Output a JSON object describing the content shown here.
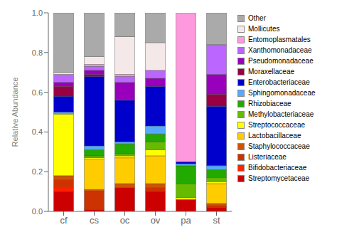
{
  "chart_data": {
    "type": "bar",
    "stacked": true,
    "grid": false,
    "legend": "right",
    "ylabel": "Relative Abundance",
    "categories": [
      "cf",
      "cs",
      "oc",
      "ov",
      "pa",
      "st"
    ],
    "ylim": [
      0.0,
      1.0
    ],
    "yticks": [
      {
        "value": 0.0,
        "label": "0.0"
      },
      0.2,
      0.4,
      0.6,
      0.8,
      {
        "value": 1.0,
        "label": "1.0"
      }
    ],
    "series": [
      {
        "name": "Streptomycetaceae",
        "color": "#cc0000",
        "values": [
          0.1,
          0.01,
          0.12,
          0.1,
          0.06,
          0.02
        ]
      },
      {
        "name": "Bifidobacteriaceae",
        "color": "#ff2200",
        "values": [
          0.02,
          0.0,
          0.0,
          0.0,
          0.0,
          0.0
        ]
      },
      {
        "name": "Listeriaceae",
        "color": "#cc3300",
        "values": [
          0.04,
          0.09,
          0.0,
          0.02,
          0.0,
          0.01
        ]
      },
      {
        "name": "Staphylococcaceae",
        "color": "#cc5500",
        "values": [
          0.02,
          0.01,
          0.02,
          0.02,
          0.0,
          0.01
        ]
      },
      {
        "name": "Lactobacillaceae",
        "color": "#ffcc00",
        "values": [
          0.0,
          0.15,
          0.13,
          0.14,
          0.0,
          0.1
        ]
      },
      {
        "name": "Streptococcaceae",
        "color": "#ffff00",
        "values": [
          0.31,
          0.01,
          0.01,
          0.03,
          0.01,
          0.01
        ]
      },
      {
        "name": "Methylobacteriaceae",
        "color": "#66bb00",
        "values": [
          0.0,
          0.01,
          0.01,
          0.04,
          0.07,
          0.02
        ]
      },
      {
        "name": "Rhizobiaceae",
        "color": "#22aa00",
        "values": [
          0.0,
          0.03,
          0.05,
          0.04,
          0.09,
          0.04
        ]
      },
      {
        "name": "Sphingomonadaceae",
        "color": "#55aaff",
        "values": [
          0.01,
          0.02,
          0.01,
          0.04,
          0.01,
          0.02
        ]
      },
      {
        "name": "Enterobacteriaceae",
        "color": "#0000cc",
        "values": [
          0.08,
          0.35,
          0.21,
          0.2,
          0.01,
          0.3
        ]
      },
      {
        "name": "Moraxellaceae",
        "color": "#990044",
        "values": [
          0.05,
          0.01,
          0.0,
          0.0,
          0.0,
          0.06
        ]
      },
      {
        "name": "Pseudomonadaceae",
        "color": "#9900bb",
        "values": [
          0.02,
          0.02,
          0.09,
          0.04,
          0.0,
          0.1
        ]
      },
      {
        "name": "Xanthomonadaceae",
        "color": "#bb66ff",
        "values": [
          0.04,
          0.02,
          0.03,
          0.04,
          0.0,
          0.15
        ]
      },
      {
        "name": "Entomoplasmatales",
        "color": "#ff99dd",
        "values": [
          0.0,
          0.01,
          0.01,
          0.0,
          0.75,
          0.0
        ]
      },
      {
        "name": "Mollicutes",
        "color": "#f5e8e8",
        "values": [
          0.01,
          0.04,
          0.19,
          0.14,
          0.0,
          0.0
        ]
      },
      {
        "name": "Other",
        "color": "#aaaaaa",
        "values": [
          0.3,
          0.22,
          0.12,
          0.15,
          0.0,
          0.16
        ]
      }
    ]
  }
}
